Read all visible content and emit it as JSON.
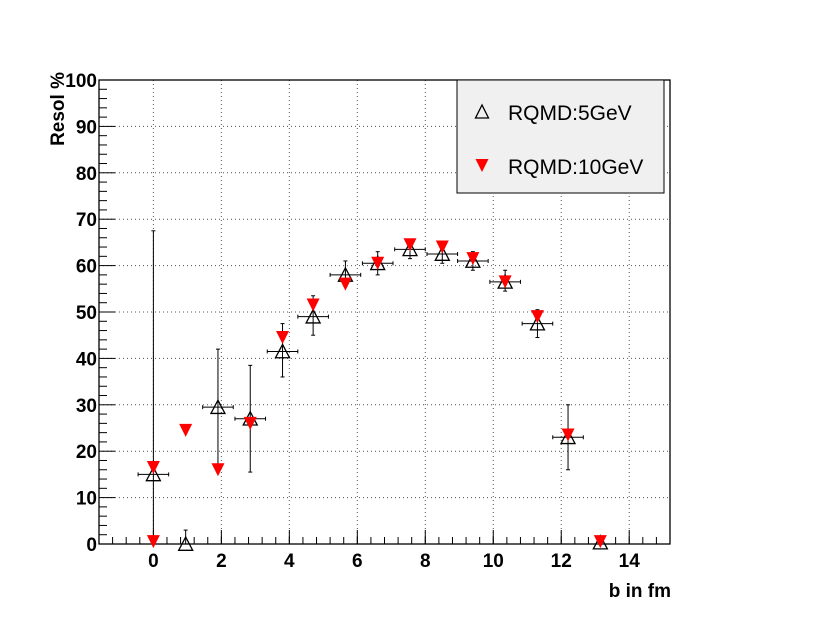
{
  "chart_data": {
    "type": "scatter",
    "xlabel": "b in fm",
    "ylabel": "Resol %",
    "xlim": [
      -1.6,
      15.2
    ],
    "ylim": [
      0,
      100
    ],
    "x_ticks": [
      0,
      2,
      4,
      6,
      8,
      10,
      12,
      14
    ],
    "y_ticks": [
      0,
      10,
      20,
      30,
      40,
      50,
      60,
      70,
      80,
      90,
      100
    ],
    "grid": true,
    "legend_position": "top-right",
    "series": [
      {
        "name": "RQMD:5GeV",
        "marker": "open-triangle-up",
        "color": "#000000",
        "points": [
          {
            "x": 0.0,
            "y": 15.0,
            "xerr": 0.45,
            "ylo": 0.0,
            "yhi": 67.5
          },
          {
            "x": 0.95,
            "y": 0.0,
            "xerr": 0.0,
            "ylo": 0.0,
            "yhi": 3.0
          },
          {
            "x": 1.9,
            "y": 29.5,
            "xerr": 0.45,
            "ylo": 17.0,
            "yhi": 42.0
          },
          {
            "x": 2.85,
            "y": 27.0,
            "xerr": 0.45,
            "ylo": 15.5,
            "yhi": 38.5
          },
          {
            "x": 3.8,
            "y": 41.5,
            "xerr": 0.45,
            "ylo": 36.0,
            "yhi": 47.5
          },
          {
            "x": 4.7,
            "y": 49.0,
            "xerr": 0.45,
            "ylo": 45.0,
            "yhi": 53.5
          },
          {
            "x": 5.65,
            "y": 58.0,
            "xerr": 0.45,
            "ylo": 55.5,
            "yhi": 61.0
          },
          {
            "x": 6.6,
            "y": 60.5,
            "xerr": 0.45,
            "ylo": 58.0,
            "yhi": 63.0
          },
          {
            "x": 7.55,
            "y": 63.5,
            "xerr": 0.45,
            "ylo": 61.5,
            "yhi": 65.5
          },
          {
            "x": 8.5,
            "y": 62.5,
            "xerr": 0.45,
            "ylo": 60.5,
            "yhi": 64.5
          },
          {
            "x": 9.4,
            "y": 61.0,
            "xerr": 0.45,
            "ylo": 59.0,
            "yhi": 63.0
          },
          {
            "x": 10.35,
            "y": 56.5,
            "xerr": 0.45,
            "ylo": 54.5,
            "yhi": 59.0
          },
          {
            "x": 11.3,
            "y": 47.5,
            "xerr": 0.45,
            "ylo": 44.5,
            "yhi": 50.5
          },
          {
            "x": 12.2,
            "y": 23.0,
            "xerr": 0.45,
            "ylo": 16.0,
            "yhi": 30.0
          },
          {
            "x": 13.15,
            "y": 0.3,
            "xerr": 0.0,
            "ylo": 0.0,
            "yhi": 0.5
          }
        ]
      },
      {
        "name": "RQMD:10GeV",
        "marker": "filled-triangle-down",
        "color": "#ff0000",
        "points": [
          {
            "x": 0.0,
            "y": 16.5
          },
          {
            "x": 0.0,
            "y": 0.5
          },
          {
            "x": 0.95,
            "y": 24.5
          },
          {
            "x": 1.9,
            "y": 16.0
          },
          {
            "x": 2.85,
            "y": 26.0
          },
          {
            "x": 3.8,
            "y": 44.5
          },
          {
            "x": 4.7,
            "y": 51.5
          },
          {
            "x": 5.65,
            "y": 56.0
          },
          {
            "x": 6.6,
            "y": 60.5
          },
          {
            "x": 7.55,
            "y": 64.5
          },
          {
            "x": 8.5,
            "y": 64.0
          },
          {
            "x": 9.4,
            "y": 61.5
          },
          {
            "x": 10.35,
            "y": 56.5
          },
          {
            "x": 11.3,
            "y": 49.0
          },
          {
            "x": 12.2,
            "y": 23.5
          },
          {
            "x": 13.15,
            "y": 0.5
          }
        ]
      }
    ]
  }
}
